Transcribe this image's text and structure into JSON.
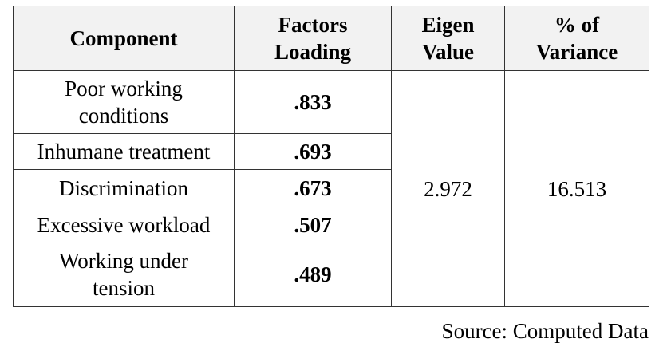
{
  "table": {
    "headers": {
      "component": "Component",
      "loading_line1": "Factors",
      "loading_line2": "Loading",
      "eigen_line1": "Eigen",
      "eigen_line2": "Value",
      "variance_line1": "% of",
      "variance_line2": "Variance"
    },
    "rows": [
      {
        "component_line1": "Poor working",
        "component_line2": "conditions",
        "loading": ".833"
      },
      {
        "component_line1": "Inhumane treatment",
        "component_line2": "",
        "loading": ".693"
      },
      {
        "component_line1": "Discrimination",
        "component_line2": "",
        "loading": ".673"
      },
      {
        "component_line1": "Excessive workload",
        "component_line2": "",
        "loading": ".507"
      },
      {
        "component_line1": "Working under",
        "component_line2": "tension",
        "loading": ".489"
      }
    ],
    "eigen_value": "2.972",
    "percent_variance": "16.513"
  },
  "source": "Source: Computed Data"
}
